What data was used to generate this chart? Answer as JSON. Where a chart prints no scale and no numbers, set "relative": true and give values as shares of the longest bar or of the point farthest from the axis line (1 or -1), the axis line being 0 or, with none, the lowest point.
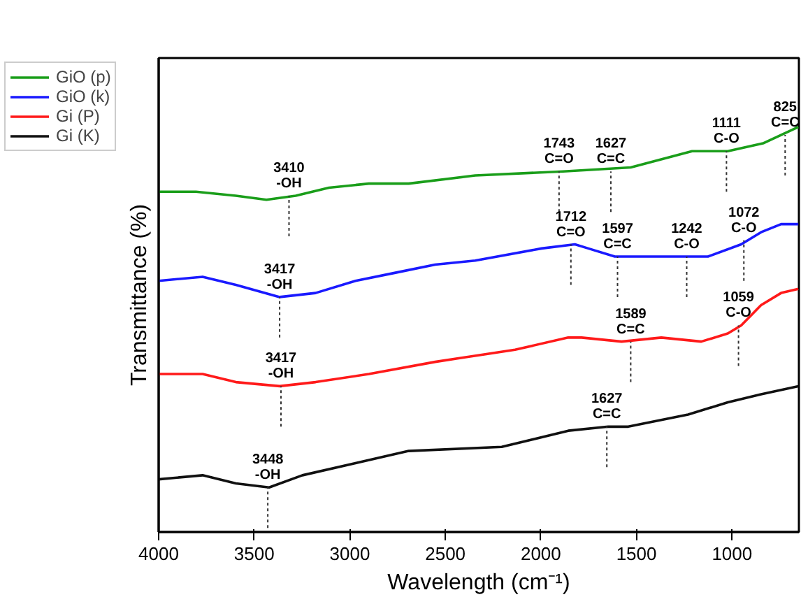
{
  "chart_data": {
    "type": "line",
    "relative": true,
    "xlabel": "Wavelength (cm⁻¹)",
    "ylabel": "Transmittance (%)",
    "xlim": [
      4000,
      650
    ],
    "xticks": [
      4000,
      3500,
      3000,
      2500,
      2000,
      1500,
      1000
    ],
    "grid": false,
    "legend": "top left",
    "marker": "none",
    "line_style": "solid",
    "series": [
      {
        "name": "GiO (p)",
        "color": "#1a9e1a",
        "x": [
          4000,
          3805,
          3596,
          3436,
          3283,
          3109,
          2900,
          2692,
          2344,
          1884,
          1530,
          1209,
          1022,
          834,
          653
        ],
        "values": [
          0.84,
          0.84,
          0.83,
          0.82,
          0.83,
          0.85,
          0.86,
          0.86,
          0.88,
          0.89,
          0.9,
          0.94,
          0.94,
          0.96,
          1.0
        ]
      },
      {
        "name": "GiO (k)",
        "color": "#1a1aff",
        "x": [
          4000,
          3770,
          3596,
          3367,
          3179,
          2970,
          2761,
          2553,
          2344,
          1996,
          1822,
          1752,
          1613,
          1509,
          1300,
          1126,
          952,
          848,
          743,
          653
        ],
        "values": [
          0.62,
          0.63,
          0.61,
          0.58,
          0.59,
          0.62,
          0.64,
          0.66,
          0.67,
          0.7,
          0.71,
          0.7,
          0.68,
          0.68,
          0.68,
          0.68,
          0.71,
          0.74,
          0.76,
          0.76
        ]
      },
      {
        "name": "Gi (P)",
        "color": "#ff1a1a",
        "x": [
          4000,
          3770,
          3596,
          3367,
          3179,
          2900,
          2553,
          2413,
          2135,
          1857,
          1787,
          1578,
          1370,
          1161,
          1022,
          952,
          848,
          743,
          653
        ],
        "values": [
          0.39,
          0.39,
          0.37,
          0.36,
          0.37,
          0.39,
          0.42,
          0.43,
          0.45,
          0.48,
          0.48,
          0.47,
          0.48,
          0.47,
          0.49,
          0.51,
          0.56,
          0.59,
          0.6
        ]
      },
      {
        "name": "Gi (K)",
        "color": "#111111",
        "x": [
          4000,
          3770,
          3596,
          3422,
          3248,
          2970,
          2692,
          2205,
          1857,
          1648,
          1543,
          1230,
          1022,
          848,
          653
        ],
        "values": [
          0.13,
          0.14,
          0.12,
          0.11,
          0.14,
          0.17,
          0.2,
          0.21,
          0.25,
          0.26,
          0.26,
          0.29,
          0.32,
          0.34,
          0.36
        ]
      }
    ],
    "annotations": [
      {
        "text": "3410\n-OH",
        "x": 3318,
        "y": 0.83
      },
      {
        "text": "1743\nC=O",
        "x": 1905,
        "y": 0.89
      },
      {
        "text": "1627\nC=C",
        "x": 1634,
        "y": 0.89
      },
      {
        "text": "1111\nC-O",
        "x": 1029,
        "y": 0.94
      },
      {
        "text": "825\nC=C",
        "x": 722,
        "y": 0.98
      },
      {
        "text": "3417\n-OH",
        "x": 3367,
        "y": 0.58
      },
      {
        "text": "1712\nC=O",
        "x": 1843,
        "y": 0.71
      },
      {
        "text": "1597\nC=C",
        "x": 1599,
        "y": 0.68
      },
      {
        "text": "1242\nC-O",
        "x": 1237,
        "y": 0.68
      },
      {
        "text": "1072\nC-O",
        "x": 938,
        "y": 0.72
      },
      {
        "text": "3417\n-OH",
        "x": 3360,
        "y": 0.36
      },
      {
        "text": "1589\nC=C",
        "x": 1530,
        "y": 0.47
      },
      {
        "text": "1059\nC-O",
        "x": 966,
        "y": 0.51
      },
      {
        "text": "3448\n-OH",
        "x": 3429,
        "y": 0.11
      },
      {
        "text": "1627\nC=C",
        "x": 1655,
        "y": 0.26
      }
    ]
  }
}
